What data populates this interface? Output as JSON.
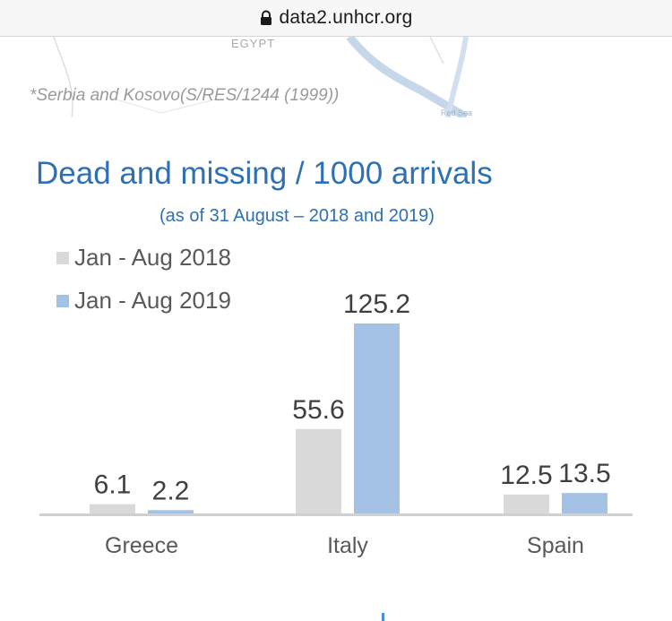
{
  "browser": {
    "url": "data2.unhcr.org"
  },
  "map": {
    "country_label": "EGYPT",
    "sea_label": "Red Sea"
  },
  "footnote": "*Serbia and Kosovo(S/RES/1244 (1999))",
  "colors": {
    "series_2018": "#d9d9d9",
    "series_2019": "#a4c2e4",
    "title": "#2f6fb3",
    "axis": "#d0d0d0"
  },
  "chart_data": {
    "type": "bar",
    "title": "Dead and missing / 1000 arrivals",
    "subtitle": "(as of 31 August – 2018 and 2019)",
    "categories": [
      "Greece",
      "Italy",
      "Spain"
    ],
    "series": [
      {
        "name": "Jan - Aug 2018",
        "values": [
          6.1,
          55.6,
          12.5
        ],
        "labels": [
          "6.1",
          "55.6",
          "12.5"
        ]
      },
      {
        "name": "Jan - Aug 2019",
        "values": [
          2.2,
          125.2,
          13.5
        ],
        "labels": [
          "2.2",
          "125.2",
          "13.5"
        ]
      }
    ],
    "ylim": [
      0,
      125.2
    ],
    "legend": "top-left",
    "grid": false,
    "xlabel": "",
    "ylabel": ""
  }
}
